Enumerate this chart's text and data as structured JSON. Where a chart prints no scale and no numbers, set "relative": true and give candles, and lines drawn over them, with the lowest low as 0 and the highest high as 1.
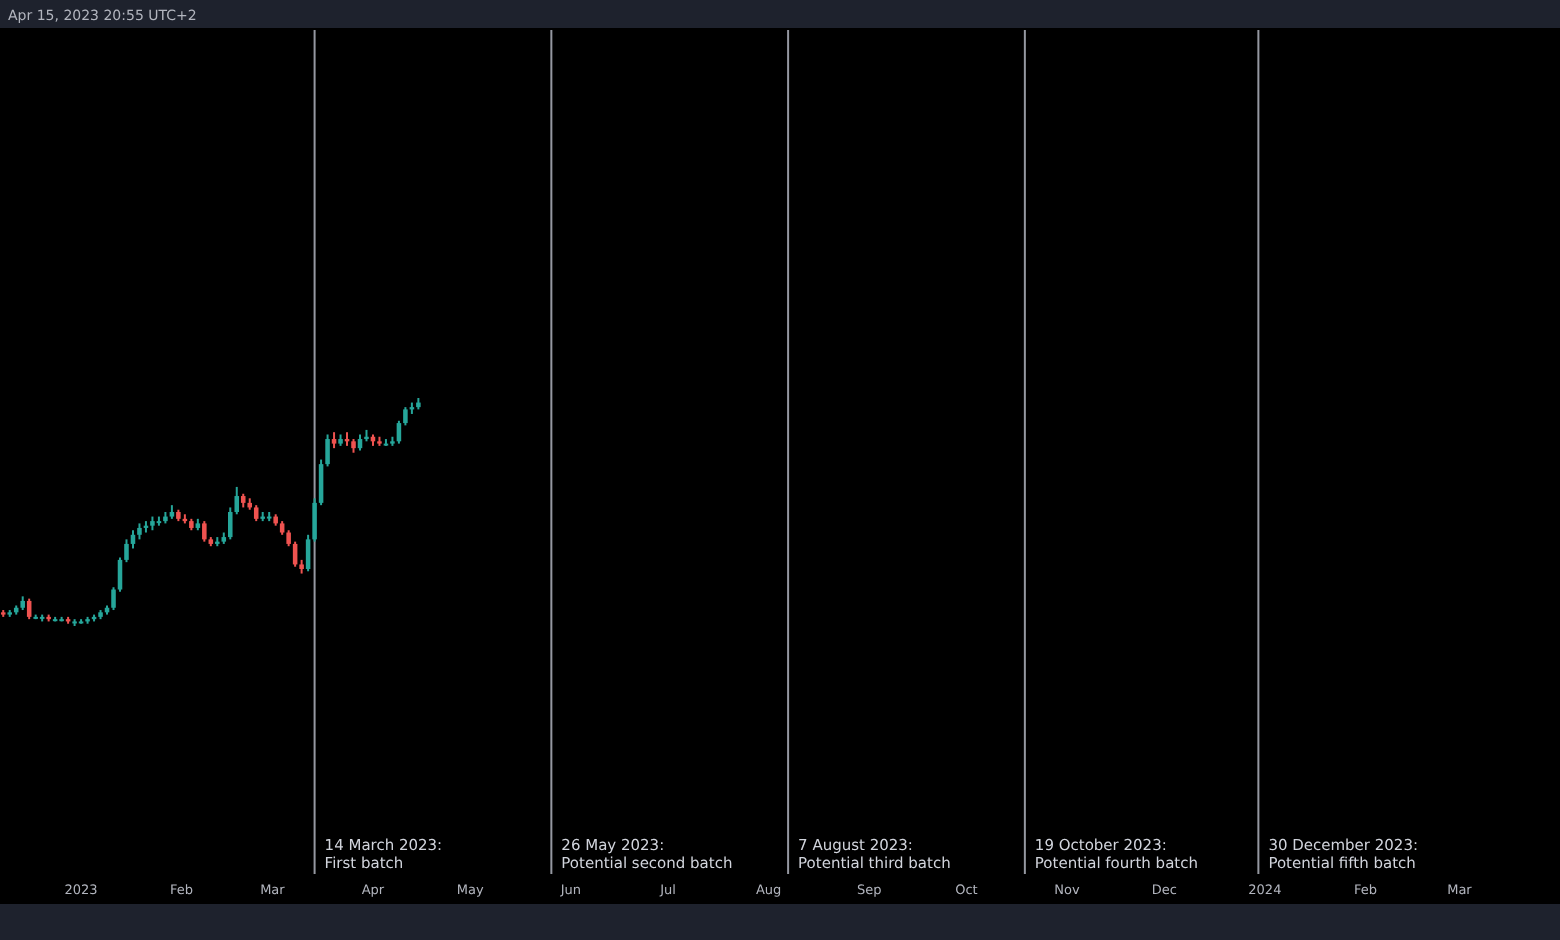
{
  "chart_data": {
    "type": "candlestick",
    "relative": true,
    "tick_labels": "x",
    "grid": false,
    "annotations": [
      "Apr 15, 2023 20:55 UTC+2"
    ],
    "xlim": [
      "2022-12-07",
      "2024-04-01"
    ],
    "xticks": [
      {
        "value": "2023-01-01",
        "label": "2023"
      },
      {
        "value": "2023-02-01",
        "label": "Feb"
      },
      {
        "value": "2023-03-01",
        "label": "Mar"
      },
      {
        "value": "2023-04-01",
        "label": "Apr"
      },
      {
        "value": "2023-05-01",
        "label": "May"
      },
      {
        "value": "2023-06-01",
        "label": "Jun"
      },
      {
        "value": "2023-07-01",
        "label": "Jul"
      },
      {
        "value": "2023-08-01",
        "label": "Aug"
      },
      {
        "value": "2023-09-01",
        "label": "Sep"
      },
      {
        "value": "2023-10-01",
        "label": "Oct"
      },
      {
        "value": "2023-11-01",
        "label": "Nov"
      },
      {
        "value": "2023-12-01",
        "label": "Dec"
      },
      {
        "value": "2024-01-01",
        "label": "2024"
      },
      {
        "value": "2024-02-01",
        "label": "Feb"
      },
      {
        "value": "2024-03-01",
        "label": "Mar"
      }
    ],
    "ref_lines": [
      {
        "axis": "x",
        "value": "2023-03-14",
        "label": "14 March 2023:\nFirst batch",
        "color": "#9598a1"
      },
      {
        "axis": "x",
        "value": "2023-05-26",
        "label": "26 May 2023:\nPotential second batch",
        "color": "#9598a1"
      },
      {
        "axis": "x",
        "value": "2023-08-07",
        "label": "7 August 2023:\nPotential third batch",
        "color": "#9598a1"
      },
      {
        "axis": "x",
        "value": "2023-10-19",
        "label": "19 October 2023:\nPotential fourth batch",
        "color": "#9598a1"
      },
      {
        "axis": "x",
        "value": "2023-12-30",
        "label": "30 December 2023:\nPotential fifth batch",
        "color": "#9598a1"
      }
    ],
    "x": [
      "2022-12-08",
      "2022-12-10",
      "2022-12-12",
      "2022-12-14",
      "2022-12-16",
      "2022-12-18",
      "2022-12-20",
      "2022-12-22",
      "2022-12-24",
      "2022-12-26",
      "2022-12-28",
      "2022-12-30",
      "2023-01-01",
      "2023-01-03",
      "2023-01-05",
      "2023-01-07",
      "2023-01-09",
      "2023-01-11",
      "2023-01-13",
      "2023-01-15",
      "2023-01-17",
      "2023-01-19",
      "2023-01-21",
      "2023-01-23",
      "2023-01-25",
      "2023-01-27",
      "2023-01-29",
      "2023-01-31",
      "2023-02-02",
      "2023-02-04",
      "2023-02-06",
      "2023-02-08",
      "2023-02-10",
      "2023-02-12",
      "2023-02-14",
      "2023-02-16",
      "2023-02-18",
      "2023-02-20",
      "2023-02-22",
      "2023-02-24",
      "2023-02-26",
      "2023-02-28",
      "2023-03-02",
      "2023-03-04",
      "2023-03-06",
      "2023-03-08",
      "2023-03-10",
      "2023-03-12",
      "2023-03-14",
      "2023-03-16",
      "2023-03-18",
      "2023-03-20",
      "2023-03-22",
      "2023-03-24",
      "2023-03-26",
      "2023-03-28",
      "2023-03-30",
      "2023-04-01",
      "2023-04-03",
      "2023-04-05",
      "2023-04-07",
      "2023-04-09",
      "2023-04-11",
      "2023-04-13",
      "2023-04-15"
    ],
    "ohlc": [
      [
        0.06,
        0.07,
        0.04,
        0.05
      ],
      [
        0.05,
        0.07,
        0.04,
        0.06
      ],
      [
        0.06,
        0.09,
        0.05,
        0.08
      ],
      [
        0.08,
        0.13,
        0.07,
        0.11
      ],
      [
        0.11,
        0.12,
        0.03,
        0.04
      ],
      [
        0.04,
        0.05,
        0.03,
        0.04
      ],
      [
        0.04,
        0.05,
        0.02,
        0.04
      ],
      [
        0.04,
        0.05,
        0.02,
        0.03
      ],
      [
        0.03,
        0.04,
        0.02,
        0.03
      ],
      [
        0.03,
        0.04,
        0.02,
        0.03
      ],
      [
        0.03,
        0.04,
        0.01,
        0.02
      ],
      [
        0.02,
        0.03,
        0,
        0.02
      ],
      [
        0.02,
        0.03,
        0.01,
        0.02
      ],
      [
        0.02,
        0.04,
        0.01,
        0.03
      ],
      [
        0.03,
        0.05,
        0.02,
        0.04
      ],
      [
        0.04,
        0.07,
        0.03,
        0.06
      ],
      [
        0.06,
        0.09,
        0.05,
        0.08
      ],
      [
        0.08,
        0.17,
        0.07,
        0.16
      ],
      [
        0.16,
        0.3,
        0.15,
        0.29
      ],
      [
        0.29,
        0.38,
        0.28,
        0.36
      ],
      [
        0.36,
        0.42,
        0.34,
        0.4
      ],
      [
        0.4,
        0.45,
        0.38,
        0.43
      ],
      [
        0.43,
        0.46,
        0.41,
        0.44
      ],
      [
        0.44,
        0.48,
        0.42,
        0.46
      ],
      [
        0.46,
        0.48,
        0.44,
        0.46
      ],
      [
        0.46,
        0.5,
        0.45,
        0.48
      ],
      [
        0.48,
        0.53,
        0.47,
        0.5
      ],
      [
        0.5,
        0.51,
        0.46,
        0.47
      ],
      [
        0.47,
        0.49,
        0.45,
        0.46
      ],
      [
        0.46,
        0.47,
        0.42,
        0.43
      ],
      [
        0.43,
        0.47,
        0.42,
        0.45
      ],
      [
        0.45,
        0.46,
        0.37,
        0.38
      ],
      [
        0.38,
        0.39,
        0.35,
        0.36
      ],
      [
        0.36,
        0.39,
        0.35,
        0.37
      ],
      [
        0.37,
        0.41,
        0.36,
        0.39
      ],
      [
        0.39,
        0.52,
        0.38,
        0.5
      ],
      [
        0.5,
        0.61,
        0.49,
        0.57
      ],
      [
        0.57,
        0.58,
        0.52,
        0.54
      ],
      [
        0.54,
        0.56,
        0.51,
        0.52
      ],
      [
        0.52,
        0.53,
        0.46,
        0.47
      ],
      [
        0.47,
        0.5,
        0.46,
        0.48
      ],
      [
        0.48,
        0.5,
        0.46,
        0.48
      ],
      [
        0.48,
        0.49,
        0.44,
        0.45
      ],
      [
        0.45,
        0.46,
        0.4,
        0.41
      ],
      [
        0.41,
        0.42,
        0.35,
        0.36
      ],
      [
        0.36,
        0.37,
        0.26,
        0.27
      ],
      [
        0.27,
        0.29,
        0.23,
        0.25
      ],
      [
        0.25,
        0.4,
        0.24,
        0.38
      ],
      [
        0.38,
        0.56,
        0.37,
        0.54
      ],
      [
        0.54,
        0.73,
        0.53,
        0.71
      ],
      [
        0.71,
        0.84,
        0.7,
        0.82
      ],
      [
        0.82,
        0.85,
        0.78,
        0.8
      ],
      [
        0.8,
        0.84,
        0.79,
        0.82
      ],
      [
        0.82,
        0.85,
        0.79,
        0.81
      ],
      [
        0.81,
        0.82,
        0.76,
        0.78
      ],
      [
        0.78,
        0.84,
        0.77,
        0.82
      ],
      [
        0.82,
        0.86,
        0.81,
        0.83
      ],
      [
        0.83,
        0.84,
        0.79,
        0.81
      ],
      [
        0.81,
        0.83,
        0.79,
        0.8
      ],
      [
        0.8,
        0.82,
        0.79,
        0.8
      ],
      [
        0.8,
        0.83,
        0.79,
        0.81
      ],
      [
        0.81,
        0.9,
        0.8,
        0.89
      ],
      [
        0.89,
        0.96,
        0.88,
        0.95
      ],
      [
        0.95,
        0.98,
        0.93,
        0.96
      ],
      [
        0.96,
        1,
        0.95,
        0.98
      ]
    ]
  }
}
